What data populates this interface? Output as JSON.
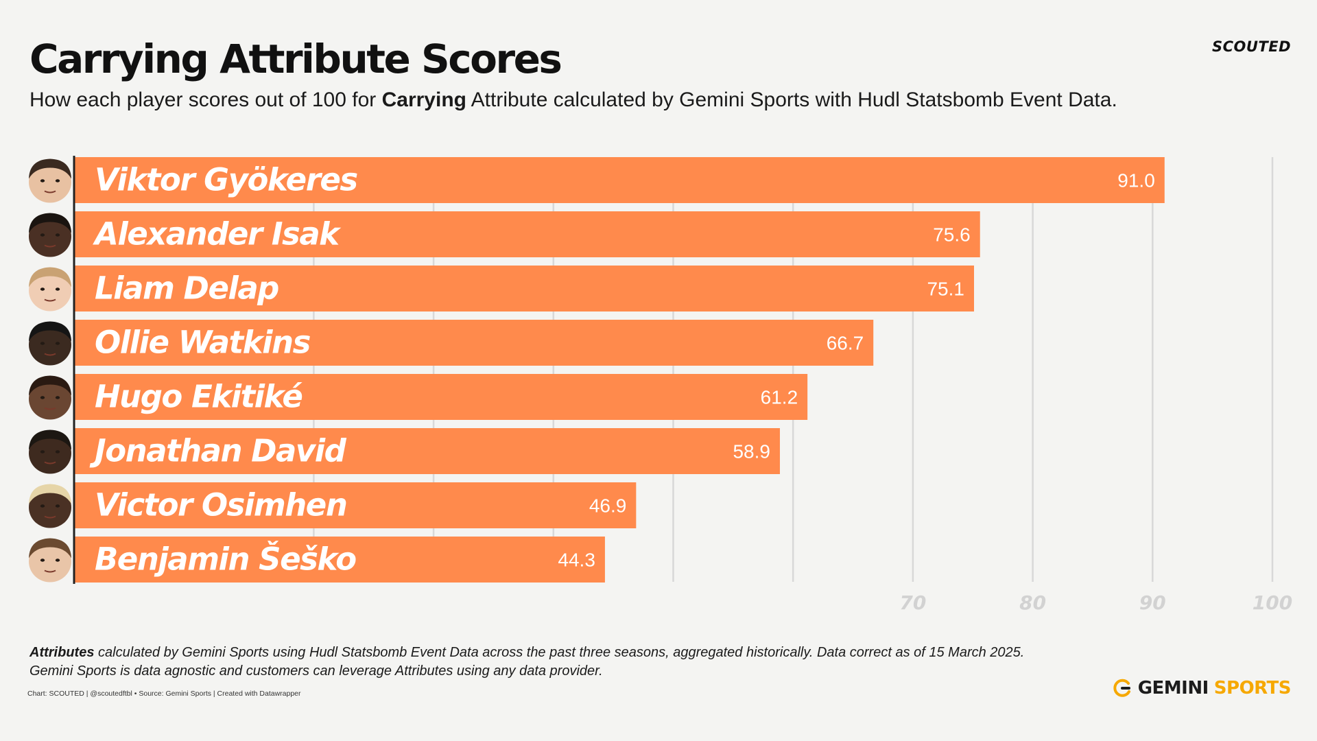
{
  "title": "Carrying Attribute Scores",
  "subtitle": {
    "pre": "How each player scores out of 100 for ",
    "bold": "Carrying",
    "post": " Attribute calculated by Gemini Sports with Hudl Statsbomb Event Data."
  },
  "brand_top": "SCOUTED",
  "colors": {
    "bar": "#ff8a4c",
    "grid": "#d8d8d8",
    "axis": "#222222",
    "tick": "#d2d2d2"
  },
  "chart_data": {
    "type": "bar",
    "orientation": "horizontal",
    "categories": [
      "Viktor  Gyökeres",
      "Alexander Isak",
      "Liam Delap",
      "Ollie Watkins",
      "Hugo Ekitiké",
      "Jonathan David",
      "Victor Osimhen",
      "Benjamin Šeško"
    ],
    "values": [
      91.0,
      75.6,
      75.1,
      66.7,
      61.2,
      58.9,
      46.9,
      44.3
    ],
    "value_labels": [
      "91.0",
      "75.6",
      "75.1",
      "66.7",
      "61.2",
      "58.9",
      "46.9",
      "44.3"
    ],
    "xlim": [
      0,
      100
    ],
    "gridlines": [
      20,
      30,
      40,
      50,
      60,
      70,
      80,
      90,
      100
    ],
    "tick_labels": [
      "70",
      "80",
      "90",
      "100"
    ],
    "tick_values": [
      70,
      80,
      90,
      100
    ],
    "grid": true,
    "legend": "none"
  },
  "footer": {
    "bold": "Attributes",
    "line1": " calculated by Gemini Sports using Hudl Statsbomb Event Data across the past three seasons, aggregated historically. Data correct as of 15 March 2025.",
    "line2": "Gemini Sports is data agnostic and customers can leverage Attributes using any data provider."
  },
  "credit": "Chart: SCOUTED | @scoutedftbl • Source: Gemini Sports | Created with Datawrapper",
  "brand_bottom": {
    "word1": "GEMINI",
    "word2": "SPORTS",
    "icon": "gemini-logo-icon"
  }
}
